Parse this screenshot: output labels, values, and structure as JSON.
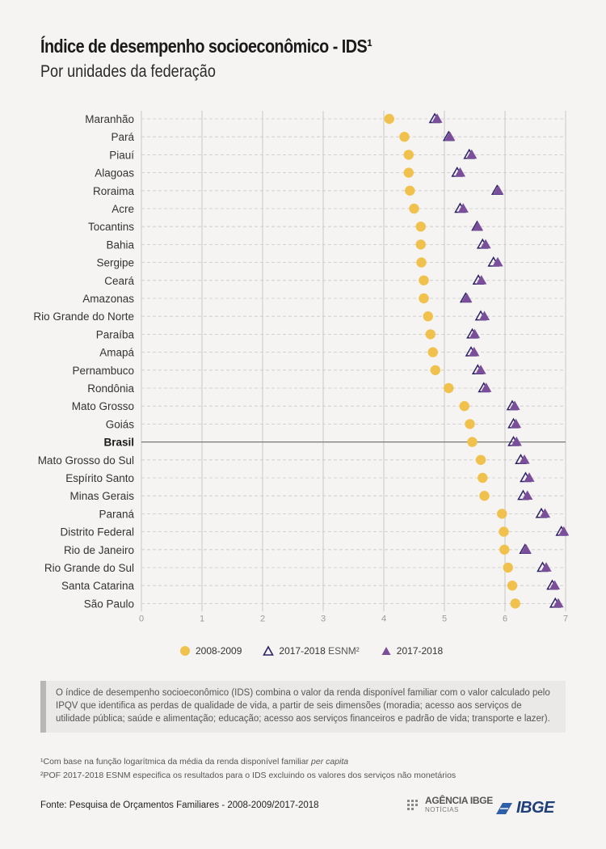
{
  "title": "Índice de desempenho socioeconômico - IDS¹",
  "subtitle": "Por unidades da federação",
  "legend": {
    "s1": "2008-2009",
    "s2_main": "2017-2018",
    "s2_suffix": "ESNM²",
    "s3": "2017-2018"
  },
  "note": "O índice de desempenho socioeconômico (IDS) combina o valor da renda disponível familiar com o valor calculado pelo IPQV que identifica as perdas de qualidade de vida, a partir de seis dimensões (moradia; acesso aos serviços de utilidade pública; saúde e alimentação; educação; acesso aos serviços financeiros e padrão de vida; transporte e lazer).",
  "footnote1": {
    "main": "¹Com base na função logarítmica da média da renda disponível familiar ",
    "italic": "per capita"
  },
  "footnote2": "²POF 2017-2018 ESNM especifica os resultados para o IDS excluindo os valores dos serviços não monetários",
  "source": "Fonte: Pesquisa de Orçamentos Familiares - 2008-2009/2017-2018",
  "logos": {
    "agencia_line1": "AGÊNCIA IBGE",
    "agencia_line2": "NOTÍCIAS",
    "ibge": "IBGE"
  },
  "colors": {
    "series_2008": "#f0c24d",
    "series_2017": "#7a4e9a",
    "series_esnm_stroke": "#2b2266",
    "grid": "#c8c8c8",
    "baseline": "#777777"
  },
  "chart_data": {
    "type": "scatter",
    "orientation": "horizontal dot plot",
    "xlim": [
      0,
      7
    ],
    "xticks": [
      "0",
      "1",
      "2",
      "3",
      "4",
      "5",
      "6",
      "7"
    ],
    "highlight": "Brasil",
    "categories": [
      "Maranhão",
      "Pará",
      "Piauí",
      "Alagoas",
      "Roraima",
      "Acre",
      "Tocantins",
      "Bahia",
      "Sergipe",
      "Ceará",
      "Amazonas",
      "Rio Grande do Norte",
      "Paraíba",
      "Amapá",
      "Pernambuco",
      "Rondônia",
      "Mato Grosso",
      "Goiás",
      "Brasil",
      "Mato Grosso do Sul",
      "Espírito Santo",
      "Minas Gerais",
      "Paraná",
      "Distrito Federal",
      "Rio de Janeiro",
      "Rio Grande do Sul",
      "Santa Catarina",
      "São Paulo"
    ],
    "series": [
      {
        "name": "2008-2009",
        "marker": "circle",
        "values": [
          4.09,
          4.34,
          4.41,
          4.41,
          4.43,
          4.5,
          4.61,
          4.61,
          4.62,
          4.66,
          4.66,
          4.73,
          4.77,
          4.81,
          4.85,
          5.07,
          5.33,
          5.42,
          5.46,
          5.6,
          5.63,
          5.66,
          5.95,
          5.98,
          5.99,
          6.05,
          6.12,
          6.17
        ]
      },
      {
        "name": "2017-2018 ESNM²",
        "marker": "triangle-outline",
        "values": [
          4.84,
          5.07,
          5.41,
          5.21,
          5.87,
          5.26,
          5.54,
          5.63,
          5.81,
          5.56,
          5.35,
          5.6,
          5.46,
          5.44,
          5.55,
          5.65,
          6.12,
          6.14,
          6.14,
          6.26,
          6.34,
          6.3,
          6.6,
          6.93,
          6.33,
          6.62,
          6.78,
          6.83
        ]
      },
      {
        "name": "2017-2018",
        "marker": "triangle-filled",
        "values": [
          4.88,
          5.09,
          5.45,
          5.26,
          5.89,
          5.31,
          5.55,
          5.68,
          5.88,
          5.61,
          5.37,
          5.66,
          5.5,
          5.49,
          5.6,
          5.69,
          6.16,
          6.18,
          6.19,
          6.32,
          6.4,
          6.37,
          6.66,
          6.97,
          6.35,
          6.68,
          6.82,
          6.88
        ]
      }
    ]
  }
}
